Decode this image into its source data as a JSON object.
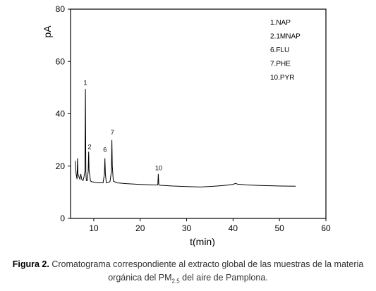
{
  "chart_data": {
    "type": "line",
    "title": "",
    "xlabel": "t(min)",
    "ylabel": "pA",
    "xlim": [
      5,
      60
    ],
    "ylim": [
      0,
      80
    ],
    "x_ticks": [
      "10",
      "20",
      "30",
      "40",
      "50",
      "60"
    ],
    "y_ticks": [
      "0",
      "20",
      "40",
      "60",
      "80"
    ],
    "grid": false,
    "legend_position": "top-right",
    "legend": [
      "1.NAP",
      "2.1MNAP",
      "6.FLU",
      "7.PHE",
      "10.PYR"
    ],
    "series": [
      {
        "x": [
          6.0,
          6.2,
          6.4,
          6.5,
          6.6,
          6.8,
          7.0,
          7.2,
          7.4,
          7.7,
          7.9,
          8.1,
          8.2,
          8.3,
          8.4,
          8.6,
          8.8,
          8.9,
          9.0,
          9.1,
          9.3,
          9.6,
          10.0,
          11.0,
          12.0,
          12.3,
          12.4,
          12.5,
          12.7,
          13.0,
          13.5,
          13.8,
          13.9,
          14.0,
          14.2,
          15.0,
          17.0,
          20.0,
          23.0,
          23.8,
          23.9,
          24.0,
          24.2,
          27.0,
          30.0,
          33.0,
          36.0,
          38.0,
          40.0,
          40.5,
          41.0,
          43.0,
          46.0,
          50.0,
          53.5
        ],
        "values": [
          22,
          17,
          15,
          23,
          17,
          16,
          15,
          17,
          15,
          14.5,
          16,
          18,
          49.5,
          18,
          14.5,
          14.5,
          18,
          25.5,
          18,
          17,
          14.3,
          14.0,
          13.9,
          13.6,
          13.6,
          17,
          23,
          17,
          13.6,
          13.8,
          14.0,
          18,
          30,
          20,
          14.3,
          13.6,
          13.3,
          13.0,
          12.8,
          12.8,
          17,
          13.0,
          12.7,
          12.4,
          12.2,
          12.0,
          12.3,
          12.6,
          13.0,
          13.4,
          13.1,
          12.8,
          12.6,
          12.4,
          12.3
        ]
      }
    ],
    "annotations": [
      {
        "text": "1",
        "x": 8.2,
        "y": 51
      },
      {
        "text": "2",
        "x": 9.1,
        "y": 26.5
      },
      {
        "text": "6",
        "x": 12.4,
        "y": 25.5
      },
      {
        "text": "7",
        "x": 14.0,
        "y": 32
      },
      {
        "text": "10",
        "x": 24.0,
        "y": 18.5
      }
    ]
  },
  "caption": {
    "label": "Figura 2.",
    "text_before": " Cromatograma correspondiente al extracto global de las muestras de la materia orgánica del PM",
    "subscript": "2.5",
    "text_after": " del aire de Pamplona."
  }
}
